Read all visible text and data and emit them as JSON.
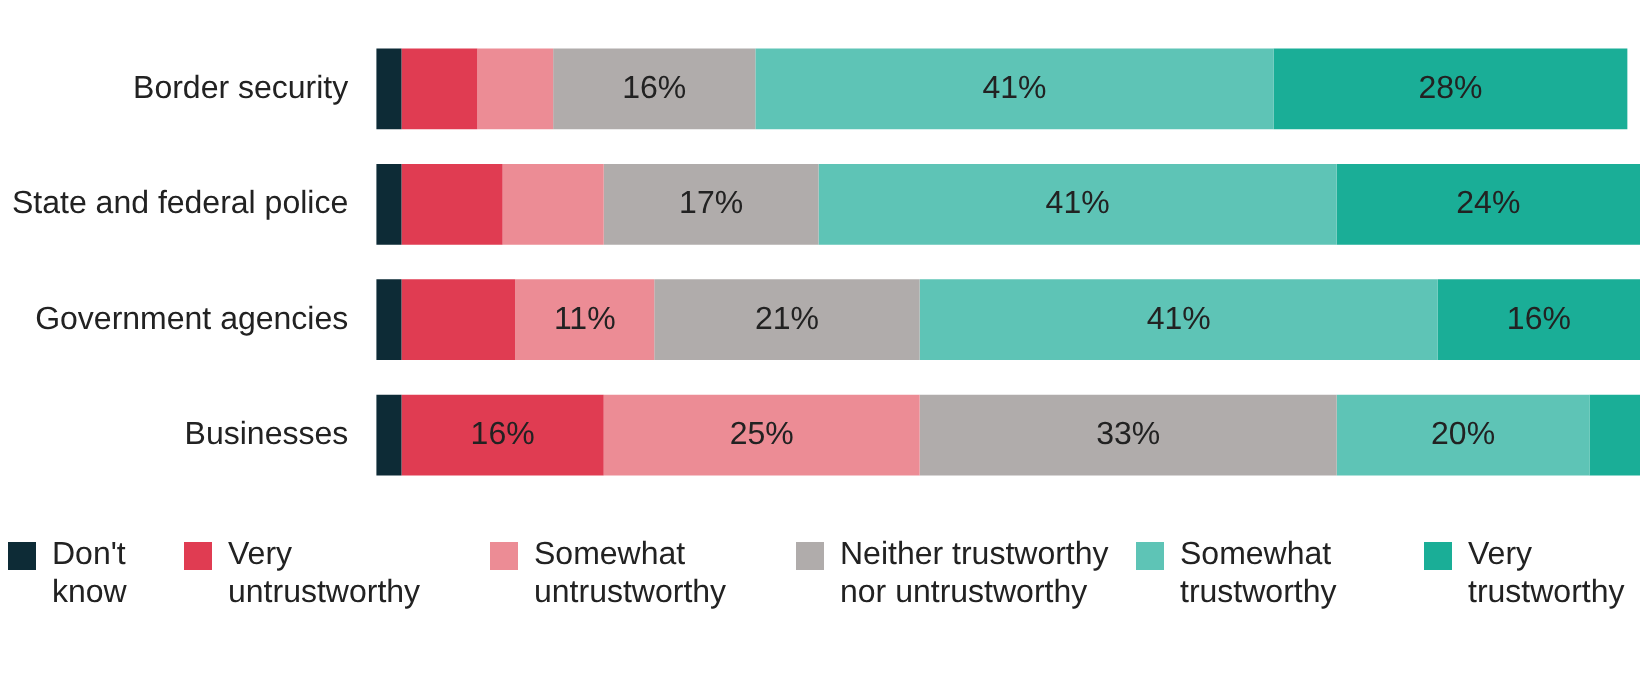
{
  "chart_data": {
    "type": "bar",
    "orientation": "horizontal",
    "stacked": true,
    "categories": [
      "Border security",
      "State and federal police",
      "Government agencies",
      "Businesses"
    ],
    "xlim": [
      0,
      100
    ],
    "tick_labels": "y",
    "legend": "bottom",
    "series": [
      {
        "name": "Don't know",
        "color": "#0d2b36",
        "values": [
          2,
          2,
          2,
          2
        ],
        "value_labels": [
          null,
          null,
          null,
          null
        ]
      },
      {
        "name": "Very untrustworthy",
        "color": "#e03c52",
        "values": [
          6,
          8,
          9,
          16
        ],
        "value_labels": [
          null,
          null,
          null,
          "16%"
        ]
      },
      {
        "name": "Somewhat untrustworthy",
        "color": "#ec8c95",
        "values": [
          6,
          8,
          11,
          25
        ],
        "value_labels": [
          null,
          null,
          "11%",
          "25%"
        ]
      },
      {
        "name": "Neither trustworthy nor untrustworthy",
        "color": "#b0acab",
        "values": [
          16,
          17,
          21,
          33
        ],
        "value_labels": [
          "16%",
          "17%",
          "21%",
          "33%"
        ]
      },
      {
        "name": "Somewhat trustworthy",
        "color": "#5ec4b6",
        "values": [
          41,
          41,
          41,
          20
        ],
        "value_labels": [
          "41%",
          "41%",
          "41%",
          "20%"
        ]
      },
      {
        "name": "Very trustworthy",
        "color": "#1aae97",
        "values": [
          28,
          24,
          16,
          4
        ],
        "value_labels": [
          "28%",
          "24%",
          "16%",
          null
        ]
      }
    ]
  }
}
